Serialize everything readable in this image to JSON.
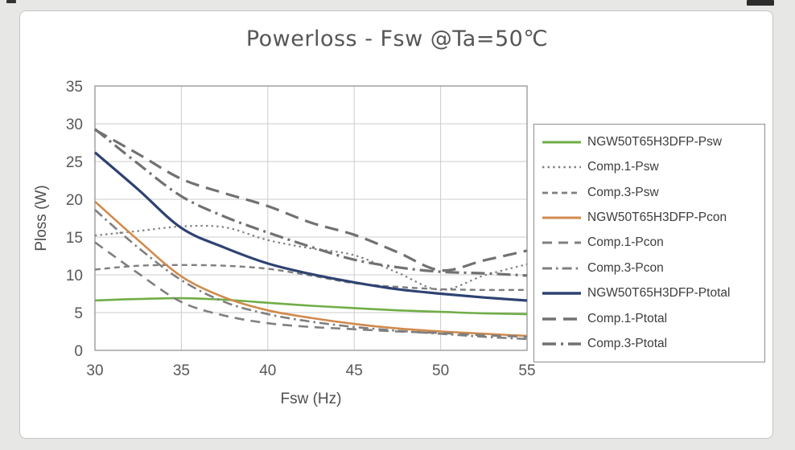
{
  "chart_data": {
    "type": "line",
    "title": "Powerloss - Fsw @Ta=50℃",
    "xlabel": "Fsw (Hz)",
    "ylabel": "Ploss (W)",
    "xlim": [
      30,
      55
    ],
    "ylim": [
      0,
      35
    ],
    "x_ticks": [
      30,
      35,
      40,
      45,
      50,
      55
    ],
    "y_ticks": [
      0,
      5,
      10,
      15,
      20,
      25,
      30,
      35
    ],
    "grid": true,
    "legend_position": "right",
    "x": [
      30,
      32.5,
      35,
      37.5,
      40,
      42.5,
      45,
      47.5,
      50,
      52.5,
      55
    ],
    "series": [
      {
        "name": "NGW50T65H3DFP-Psw",
        "style": "solid",
        "color": "#70ad47",
        "width": 2.6,
        "values": [
          6.6,
          6.8,
          6.9,
          6.7,
          6.3,
          5.9,
          5.6,
          5.3,
          5.1,
          4.9,
          4.8
        ]
      },
      {
        "name": "Comp.1-Psw",
        "style": "dotted",
        "color": "#7f7f7f",
        "width": 2.2,
        "values": [
          15.2,
          15.8,
          16.4,
          16.3,
          14.6,
          13.5,
          12.6,
          10.3,
          8.0,
          9.9,
          11.4
        ]
      },
      {
        "name": "Comp.3-Psw",
        "style": "dashed",
        "color": "#7f7f7f",
        "width": 2.4,
        "values": [
          10.7,
          11.2,
          11.3,
          11.2,
          10.8,
          9.9,
          8.9,
          8.4,
          8.1,
          8.0,
          8.0
        ]
      },
      {
        "name": "NGW50T65H3DFP-Pcon",
        "style": "solid",
        "color": "#d08a4c",
        "width": 2.6,
        "values": [
          19.7,
          14.6,
          9.8,
          7.0,
          5.3,
          4.3,
          3.5,
          2.9,
          2.5,
          2.2,
          1.9
        ]
      },
      {
        "name": "Comp.1-Pcon",
        "style": "longdash",
        "color": "#7f7f7f",
        "width": 2.6,
        "values": [
          14.3,
          10.2,
          6.4,
          4.6,
          3.6,
          3.1,
          2.8,
          2.5,
          2.3,
          2.0,
          1.8
        ]
      },
      {
        "name": "Comp.3-Pcon",
        "style": "dashdot",
        "color": "#7f7f7f",
        "width": 2.6,
        "values": [
          18.6,
          13.6,
          9.3,
          6.4,
          4.8,
          3.8,
          3.1,
          2.6,
          2.2,
          1.8,
          1.5
        ]
      },
      {
        "name": "NGW50T65H3DFP-Ptotal",
        "style": "solid",
        "color": "#2e4272",
        "width": 3.2,
        "values": [
          26.2,
          21.3,
          16.2,
          13.6,
          11.5,
          10.1,
          9.0,
          8.1,
          7.5,
          7.0,
          6.6
        ]
      },
      {
        "name": "Comp.1-Ptotal",
        "style": "longdashthick",
        "color": "#717171",
        "width": 3.2,
        "values": [
          29.2,
          26.0,
          22.7,
          20.8,
          19.1,
          16.9,
          15.3,
          13.0,
          10.6,
          11.9,
          13.2
        ]
      },
      {
        "name": "Comp.3-Ptotal",
        "style": "dashdotthick",
        "color": "#717171",
        "width": 3.2,
        "values": [
          29.3,
          24.7,
          20.4,
          17.7,
          15.6,
          13.7,
          12.0,
          11.0,
          10.4,
          10.2,
          9.9
        ]
      }
    ]
  }
}
